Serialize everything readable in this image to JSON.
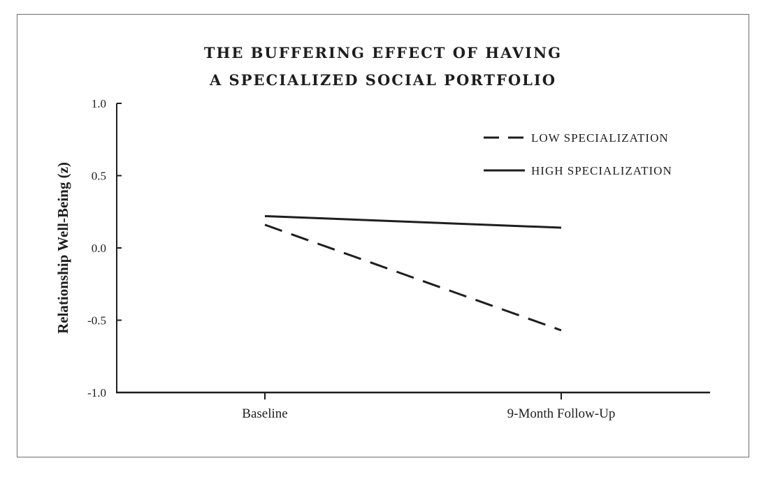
{
  "chart_data": {
    "type": "line",
    "title_lines": [
      "THE BUFFERING EFFECT OF HAVING",
      "A SPECIALIZED SOCIAL PORTFOLIO"
    ],
    "xlabel": "",
    "ylabel": "Relationship Well-Being (z)",
    "categories": [
      "Baseline",
      "9-Month Follow-Up"
    ],
    "ylim": [
      -1.0,
      1.0
    ],
    "yticks": [
      "1.0",
      "0.5",
      "0.0",
      "-0.5",
      "-1.0"
    ],
    "ytick_values": [
      1.0,
      0.5,
      0.0,
      -0.5,
      -1.0
    ],
    "grid": false,
    "legend_position": "top-right",
    "series": [
      {
        "name": "LOW SPECIALIZATION",
        "style": "dashed",
        "color": "#1e1e1e",
        "values": [
          0.16,
          -0.57
        ]
      },
      {
        "name": "HIGH SPECIALIZATION",
        "style": "solid",
        "color": "#1e1e1e",
        "values": [
          0.22,
          0.14
        ]
      }
    ]
  }
}
